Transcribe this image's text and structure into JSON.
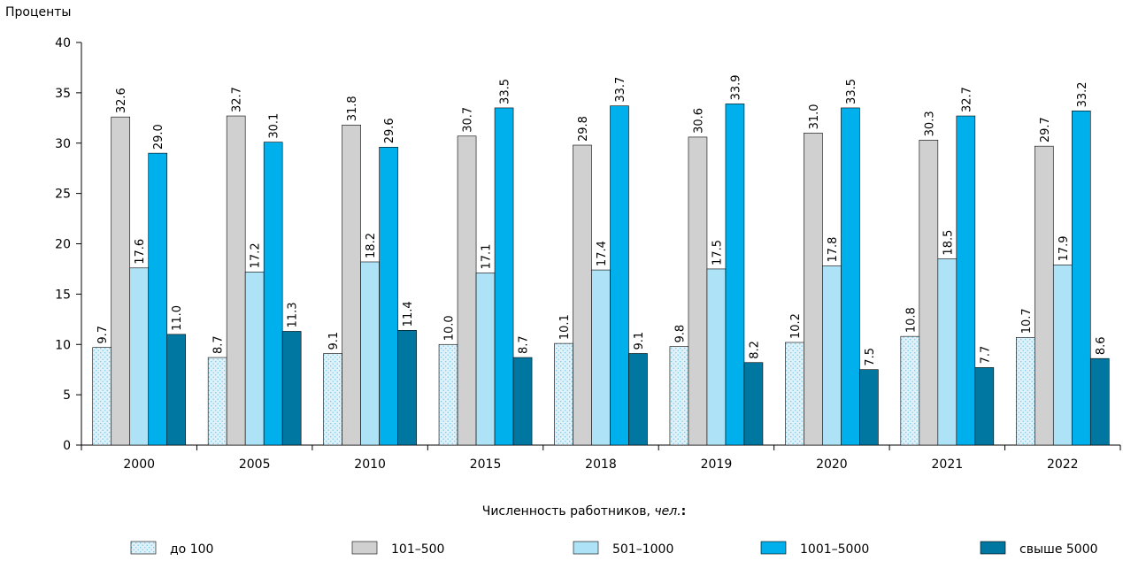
{
  "chart_data": {
    "type": "bar",
    "y_axis_label": "Проценты",
    "legend_title": [
      "Численность работников, ",
      "чел.",
      ":"
    ],
    "categories": [
      "2000",
      "2005",
      "2010",
      "2015",
      "2018",
      "2019",
      "2020",
      "2021",
      "2022"
    ],
    "series": [
      {
        "name": "до 100",
        "color": "#dff1f9",
        "pattern": "dots",
        "values": [
          9.7,
          8.7,
          9.1,
          10.0,
          10.1,
          9.8,
          10.2,
          10.8,
          10.7
        ],
        "value_labels": [
          "9.7",
          "8.7",
          "9.1",
          "10.0",
          "10.1",
          "9.8",
          "10.2",
          "10.8",
          "10.7"
        ]
      },
      {
        "name": "101–500",
        "color": "#d0d0d0",
        "values": [
          32.6,
          32.7,
          31.8,
          30.7,
          29.8,
          30.6,
          31.0,
          30.3,
          29.7
        ],
        "value_labels": [
          "32.6",
          "32.7",
          "31.8",
          "30.7",
          "29.8",
          "30.6",
          "31.0",
          "30.3",
          "29.7"
        ]
      },
      {
        "name": "501–1000",
        "color": "#aee3f7",
        "values": [
          17.6,
          17.2,
          18.2,
          17.1,
          17.4,
          17.5,
          17.8,
          18.5,
          17.9
        ],
        "value_labels": [
          "17.6",
          "17.2",
          "18.2",
          "17.1",
          "17.4",
          "17.5",
          "17.8",
          "18.5",
          "17.9"
        ]
      },
      {
        "name": "1001–5000",
        "color": "#00b0ec",
        "values": [
          29.0,
          30.1,
          29.6,
          33.5,
          33.7,
          33.9,
          33.5,
          32.7,
          33.2
        ],
        "value_labels": [
          "29.0",
          "30.1",
          "29.6",
          "33.5",
          "33.7",
          "33.9",
          "33.5",
          "32.7",
          "33.2"
        ]
      },
      {
        "name": "свыше 5000",
        "color": "#0077a0",
        "values": [
          11.0,
          11.3,
          11.4,
          8.7,
          9.1,
          8.2,
          7.5,
          7.7,
          8.6
        ],
        "value_labels": [
          "11.0",
          "11.3",
          "11.4",
          "8.7",
          "9.1",
          "8.2",
          "7.5",
          "7.7",
          "8.6"
        ]
      }
    ],
    "ylim": [
      0,
      40
    ],
    "yticks": [
      0,
      5,
      10,
      15,
      20,
      25,
      30,
      35,
      40
    ],
    "grid": false,
    "legend_position": "bottom"
  }
}
